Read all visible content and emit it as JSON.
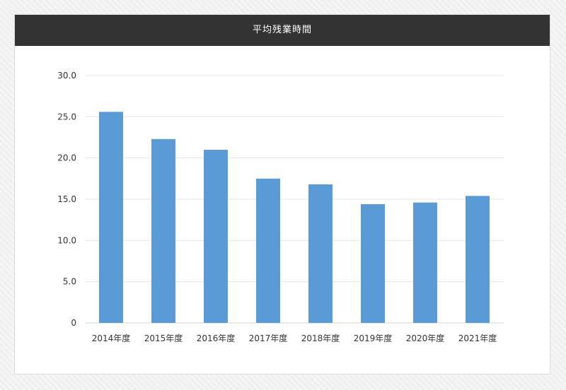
{
  "chart_data": {
    "type": "bar",
    "title": "平均残業時間",
    "categories": [
      "2014年度",
      "2015年度",
      "2016年度",
      "2017年度",
      "2018年度",
      "2019年度",
      "2020年度",
      "2021年度"
    ],
    "values": [
      25.6,
      22.3,
      21.0,
      17.5,
      16.8,
      14.4,
      14.6,
      15.4
    ],
    "ylim": [
      0,
      30
    ],
    "yticks": [
      "0",
      "5.0",
      "10.0",
      "15.0",
      "20.0",
      "25.0",
      "30.0"
    ],
    "grid": true,
    "bar_color": "#5b9bd5",
    "grid_color": "#e6e6e6"
  }
}
